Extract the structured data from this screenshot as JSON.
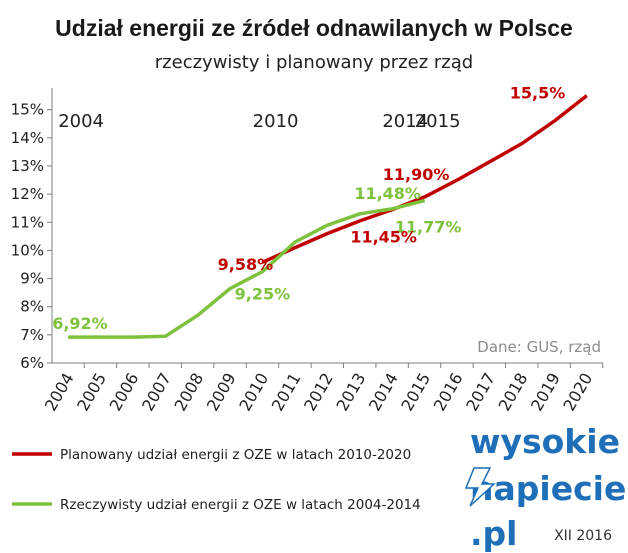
{
  "chart_data": {
    "type": "line",
    "title": "Udział energii ze źródeł odnawilanych w Polsce",
    "subtitle": "rzeczywisty i planowany przez rząd",
    "x": [
      2004,
      2005,
      2006,
      2007,
      2008,
      2009,
      2010,
      2011,
      2012,
      2013,
      2014,
      2015,
      2016,
      2017,
      2018,
      2019,
      2020
    ],
    "xlim": [
      2004,
      2020
    ],
    "ylim": [
      6,
      15.7
    ],
    "y_ticks": [
      "6%",
      "7%",
      "8%",
      "9%",
      "10%",
      "11%",
      "12%",
      "13%",
      "14%",
      "15%"
    ],
    "grid": false,
    "series": [
      {
        "name": "Planowany udział energii z OZE w latach 2010-2020",
        "color": "#c00000",
        "points": [
          [
            2010,
            9.58
          ],
          [
            2011,
            10.1
          ],
          [
            2012,
            10.6
          ],
          [
            2013,
            11.05
          ],
          [
            2014,
            11.45
          ],
          [
            2015,
            11.9
          ],
          [
            2016,
            12.5
          ],
          [
            2017,
            13.15
          ],
          [
            2018,
            13.8
          ],
          [
            2019,
            14.6
          ],
          [
            2020,
            15.5
          ]
        ]
      },
      {
        "name": "Rzeczywisty udział energii z OZE w latach 2004-2014",
        "color": "#7dc13c",
        "points": [
          [
            2004,
            6.92
          ],
          [
            2005,
            6.92
          ],
          [
            2006,
            6.92
          ],
          [
            2007,
            6.95
          ],
          [
            2008,
            7.7
          ],
          [
            2009,
            8.65
          ],
          [
            2010,
            9.25
          ],
          [
            2011,
            10.3
          ],
          [
            2012,
            10.9
          ],
          [
            2013,
            11.3
          ],
          [
            2014,
            11.48
          ],
          [
            2015,
            11.77
          ]
        ]
      }
    ],
    "annotations": [
      {
        "text": "6,92%",
        "x": 2004,
        "y": 6.92,
        "color": "#7dc13c"
      },
      {
        "text": "9,25%",
        "x": 2010,
        "y": 9.25,
        "color": "#7dc13c"
      },
      {
        "text": "11,48%",
        "x": 2014,
        "y": 11.48,
        "color": "#7dc13c"
      },
      {
        "text": "11,77%",
        "x": 2015,
        "y": 11.77,
        "color": "#7dc13c"
      },
      {
        "text": "9,58%",
        "x": 2010,
        "y": 9.58,
        "color": "#c00000"
      },
      {
        "text": "11,45%",
        "x": 2014,
        "y": 11.45,
        "color": "#c00000"
      },
      {
        "text": "11,90%",
        "x": 2015,
        "y": 11.9,
        "color": "#c00000"
      },
      {
        "text": "15,5%",
        "x": 2020,
        "y": 15.5,
        "color": "#c00000"
      }
    ],
    "year_labels": [
      {
        "text": "2004",
        "x": 2004
      },
      {
        "text": "2010",
        "x": 2010
      },
      {
        "text": "2014",
        "x": 2014
      },
      {
        "text": "2015",
        "x": 2015
      }
    ],
    "source": "Dane: GUS, rząd",
    "legend_position": "bottom-left"
  },
  "logo": {
    "line1": "wysokie",
    "line2": "napiecie",
    "line3": ".pl",
    "color": "#1e6fb8"
  },
  "date_label": "XII 2016"
}
